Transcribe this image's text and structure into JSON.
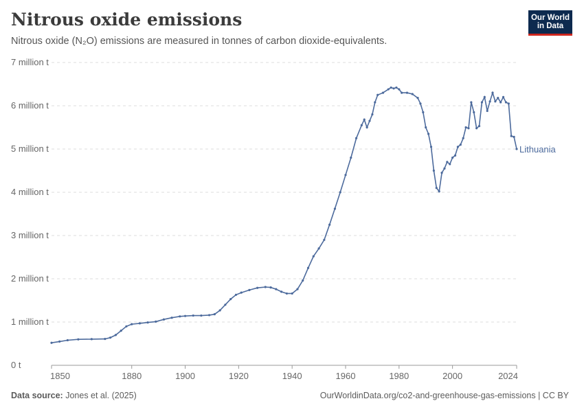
{
  "header": {
    "title": "Nitrous oxide emissions",
    "subtitle": "Nitrous oxide (N₂O) emissions are measured in tonnes of carbon dioxide-equivalents."
  },
  "logo": {
    "line1": "Our World",
    "line2": "in Data"
  },
  "footer": {
    "source_label": "Data source:",
    "source_value": " Jones et al. (2025)",
    "url": "OurWorldinData.org/co2-and-greenhouse-gas-emissions | CC BY"
  },
  "colors": {
    "series": "#4c6a9c",
    "grid": "#dddddd",
    "logo_bg": "#0d2a4f",
    "logo_accent": "#ce261e"
  },
  "chart_data": {
    "type": "line",
    "title": "Nitrous oxide emissions",
    "ylim": [
      0,
      7000000
    ],
    "xlim": [
      1850,
      2024
    ],
    "y_ticks": [
      {
        "value": 0,
        "label": "0 t"
      },
      {
        "value": 1000000,
        "label": "1 million t"
      },
      {
        "value": 2000000,
        "label": "2 million t"
      },
      {
        "value": 3000000,
        "label": "3 million t"
      },
      {
        "value": 4000000,
        "label": "4 million t"
      },
      {
        "value": 5000000,
        "label": "5 million t"
      },
      {
        "value": 6000000,
        "label": "6 million t"
      },
      {
        "value": 7000000,
        "label": "7 million t"
      }
    ],
    "x_ticks": [
      {
        "value": 1850,
        "label": "1850"
      },
      {
        "value": 1880,
        "label": "1880"
      },
      {
        "value": 1900,
        "label": "1900"
      },
      {
        "value": 1920,
        "label": "1920"
      },
      {
        "value": 1940,
        "label": "1940"
      },
      {
        "value": 1960,
        "label": "1960"
      },
      {
        "value": 1980,
        "label": "1980"
      },
      {
        "value": 2000,
        "label": "2000"
      },
      {
        "value": 2024,
        "label": "2024"
      }
    ],
    "grid": true,
    "series": [
      {
        "name": "Lithuania",
        "points": [
          [
            1850,
            520000
          ],
          [
            1853,
            550000
          ],
          [
            1856,
            580000
          ],
          [
            1860,
            600000
          ],
          [
            1865,
            605000
          ],
          [
            1870,
            610000
          ],
          [
            1872,
            640000
          ],
          [
            1874,
            700000
          ],
          [
            1876,
            800000
          ],
          [
            1878,
            900000
          ],
          [
            1880,
            950000
          ],
          [
            1883,
            970000
          ],
          [
            1886,
            990000
          ],
          [
            1889,
            1010000
          ],
          [
            1892,
            1060000
          ],
          [
            1895,
            1100000
          ],
          [
            1898,
            1130000
          ],
          [
            1900,
            1140000
          ],
          [
            1903,
            1150000
          ],
          [
            1906,
            1150000
          ],
          [
            1909,
            1160000
          ],
          [
            1911,
            1180000
          ],
          [
            1913,
            1270000
          ],
          [
            1915,
            1400000
          ],
          [
            1917,
            1530000
          ],
          [
            1919,
            1630000
          ],
          [
            1921,
            1680000
          ],
          [
            1924,
            1740000
          ],
          [
            1927,
            1790000
          ],
          [
            1930,
            1810000
          ],
          [
            1932,
            1800000
          ],
          [
            1934,
            1760000
          ],
          [
            1936,
            1700000
          ],
          [
            1938,
            1660000
          ],
          [
            1940,
            1660000
          ],
          [
            1942,
            1760000
          ],
          [
            1944,
            1960000
          ],
          [
            1946,
            2250000
          ],
          [
            1948,
            2520000
          ],
          [
            1950,
            2700000
          ],
          [
            1952,
            2900000
          ],
          [
            1954,
            3250000
          ],
          [
            1956,
            3620000
          ],
          [
            1958,
            4000000
          ],
          [
            1960,
            4400000
          ],
          [
            1962,
            4800000
          ],
          [
            1964,
            5250000
          ],
          [
            1966,
            5550000
          ],
          [
            1967,
            5680000
          ],
          [
            1968,
            5500000
          ],
          [
            1969,
            5650000
          ],
          [
            1970,
            5800000
          ],
          [
            1971,
            6080000
          ],
          [
            1972,
            6250000
          ],
          [
            1974,
            6300000
          ],
          [
            1976,
            6380000
          ],
          [
            1977,
            6420000
          ],
          [
            1978,
            6400000
          ],
          [
            1979,
            6420000
          ],
          [
            1980,
            6380000
          ],
          [
            1981,
            6300000
          ],
          [
            1983,
            6300000
          ],
          [
            1985,
            6270000
          ],
          [
            1987,
            6180000
          ],
          [
            1988,
            6050000
          ],
          [
            1989,
            5850000
          ],
          [
            1990,
            5500000
          ],
          [
            1991,
            5350000
          ],
          [
            1992,
            5050000
          ],
          [
            1993,
            4500000
          ],
          [
            1994,
            4100000
          ],
          [
            1995,
            4020000
          ],
          [
            1996,
            4450000
          ],
          [
            1997,
            4550000
          ],
          [
            1998,
            4700000
          ],
          [
            1999,
            4650000
          ],
          [
            2000,
            4800000
          ],
          [
            2001,
            4850000
          ],
          [
            2002,
            5050000
          ],
          [
            2003,
            5100000
          ],
          [
            2004,
            5250000
          ],
          [
            2005,
            5500000
          ],
          [
            2006,
            5480000
          ],
          [
            2007,
            6080000
          ],
          [
            2008,
            5850000
          ],
          [
            2009,
            5480000
          ],
          [
            2010,
            5530000
          ],
          [
            2011,
            6080000
          ],
          [
            2012,
            6200000
          ],
          [
            2013,
            5880000
          ],
          [
            2014,
            6100000
          ],
          [
            2015,
            6300000
          ],
          [
            2016,
            6100000
          ],
          [
            2017,
            6180000
          ],
          [
            2018,
            6080000
          ],
          [
            2019,
            6200000
          ],
          [
            2020,
            6080000
          ],
          [
            2021,
            6050000
          ],
          [
            2022,
            5300000
          ],
          [
            2023,
            5280000
          ],
          [
            2024,
            5000000
          ]
        ]
      }
    ]
  }
}
